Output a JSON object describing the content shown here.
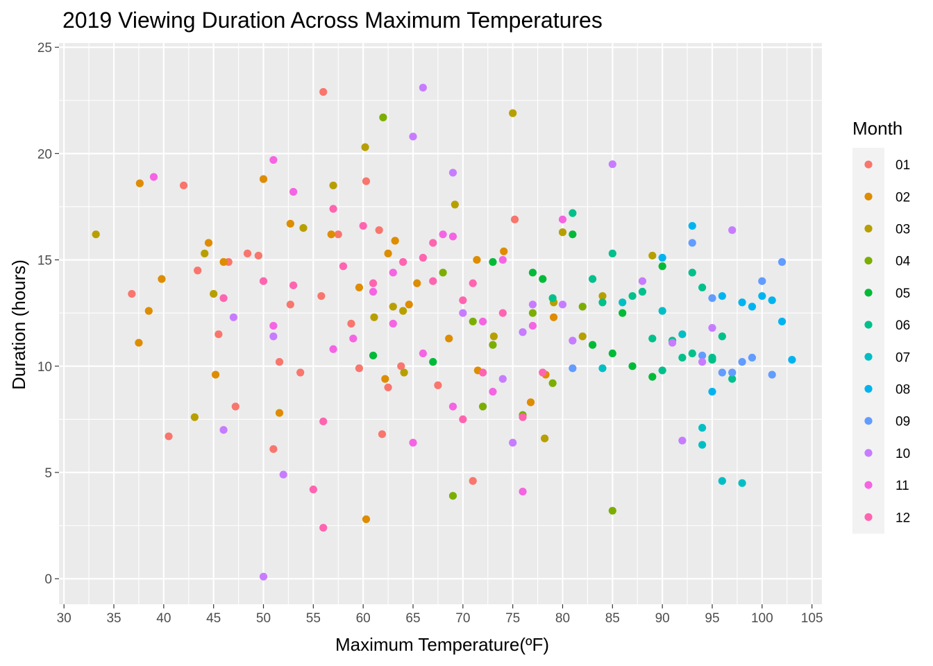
{
  "chart_data": {
    "type": "scatter",
    "title": "2019 Viewing Duration Across Maximum Temperatures",
    "xlabel": "Maximum Temperature(ºF)",
    "ylabel": "Duration (hours)",
    "xlim": [
      29.5,
      106
    ],
    "ylim": [
      -1.2,
      25.2
    ],
    "xticks": [
      30,
      35,
      40,
      45,
      50,
      55,
      60,
      65,
      70,
      75,
      80,
      85,
      90,
      95,
      100,
      105
    ],
    "yticks": [
      0,
      5,
      10,
      15,
      20,
      25
    ],
    "grid": true,
    "legend": {
      "title": "Month",
      "position": "right"
    },
    "series": [
      {
        "name": "01",
        "color": "#F8766D",
        "points": [
          [
            36.8,
            13.4
          ],
          [
            40.5,
            6.7
          ],
          [
            42,
            18.5
          ],
          [
            43.4,
            14.5
          ],
          [
            45.5,
            11.5
          ],
          [
            46.5,
            14.9
          ],
          [
            47.2,
            8.1
          ],
          [
            48.4,
            15.3
          ],
          [
            49.5,
            15.2
          ],
          [
            51,
            6.1
          ],
          [
            51.6,
            10.2
          ],
          [
            52.7,
            12.9
          ],
          [
            53.7,
            9.7
          ],
          [
            55.8,
            13.3
          ],
          [
            56,
            22.9
          ],
          [
            57.5,
            16.2
          ],
          [
            58.8,
            12.0
          ],
          [
            59.6,
            9.9
          ],
          [
            60.3,
            18.7
          ],
          [
            61.6,
            16.4
          ],
          [
            61.9,
            6.8
          ],
          [
            62.5,
            9.0
          ],
          [
            63.8,
            10.0
          ],
          [
            67.5,
            9.1
          ],
          [
            71,
            4.6
          ],
          [
            75.2,
            16.9
          ]
        ]
      },
      {
        "name": "02",
        "color": "#DE8C00",
        "points": [
          [
            37.5,
            11.1
          ],
          [
            37.6,
            18.6
          ],
          [
            38.5,
            12.6
          ],
          [
            39.8,
            14.1
          ],
          [
            44.5,
            15.8
          ],
          [
            45.2,
            9.6
          ],
          [
            46,
            14.9
          ],
          [
            50,
            18.8
          ],
          [
            51.6,
            7.8
          ],
          [
            52.7,
            16.7
          ],
          [
            56.8,
            16.2
          ],
          [
            59.6,
            13.7
          ],
          [
            60.3,
            2.8
          ],
          [
            62.2,
            9.4
          ],
          [
            62.5,
            15.3
          ],
          [
            63.2,
            15.9
          ],
          [
            64.6,
            12.9
          ],
          [
            65.4,
            13.9
          ],
          [
            68.6,
            11.3
          ],
          [
            71.4,
            15.0
          ],
          [
            71.5,
            9.8
          ],
          [
            74.1,
            15.4
          ],
          [
            76.8,
            8.3
          ],
          [
            78.3,
            9.6
          ],
          [
            79.1,
            12.3
          ]
        ]
      },
      {
        "name": "03",
        "color": "#B79F00",
        "points": [
          [
            33.2,
            16.2
          ],
          [
            43.1,
            7.6
          ],
          [
            44.1,
            15.3
          ],
          [
            45,
            13.4
          ],
          [
            54,
            16.5
          ],
          [
            57,
            18.5
          ],
          [
            60.2,
            20.3
          ],
          [
            61.1,
            12.3
          ],
          [
            63,
            12.8
          ],
          [
            64,
            12.6
          ],
          [
            64.1,
            9.7
          ],
          [
            69.2,
            17.6
          ],
          [
            73.1,
            11.4
          ],
          [
            75,
            21.9
          ],
          [
            78.2,
            6.6
          ],
          [
            79.1,
            13.0
          ],
          [
            80,
            16.3
          ],
          [
            82,
            11.4
          ],
          [
            84,
            13.3
          ],
          [
            89,
            15.2
          ]
        ]
      },
      {
        "name": "04",
        "color": "#7CAE00",
        "points": [
          [
            62,
            21.7
          ],
          [
            68,
            14.4
          ],
          [
            69,
            3.9
          ],
          [
            71,
            12.1
          ],
          [
            72,
            8.1
          ],
          [
            73,
            11.0
          ],
          [
            76,
            7.7
          ],
          [
            77,
            12.5
          ],
          [
            79,
            9.2
          ],
          [
            82,
            12.8
          ],
          [
            85,
            3.2
          ]
        ]
      },
      {
        "name": "05",
        "color": "#00BA38",
        "points": [
          [
            61,
            10.5
          ],
          [
            67,
            10.2
          ],
          [
            73,
            14.9
          ],
          [
            77,
            14.4
          ],
          [
            78,
            14.1
          ],
          [
            81,
            16.2
          ],
          [
            83,
            11.0
          ],
          [
            85,
            10.6
          ],
          [
            86,
            12.5
          ],
          [
            87,
            10.0
          ],
          [
            89,
            9.5
          ],
          [
            90,
            14.7
          ]
        ]
      },
      {
        "name": "06",
        "color": "#00C08B",
        "points": [
          [
            79,
            13.2
          ],
          [
            81,
            17.2
          ],
          [
            83,
            14.1
          ],
          [
            84,
            13.0
          ],
          [
            85,
            15.3
          ],
          [
            87,
            13.3
          ],
          [
            88,
            13.5
          ],
          [
            89,
            11.3
          ],
          [
            90,
            9.8
          ],
          [
            91,
            11.2
          ],
          [
            92,
            10.4
          ],
          [
            93,
            10.6
          ],
          [
            93,
            14.4
          ],
          [
            94,
            13.7
          ],
          [
            95,
            10.3
          ],
          [
            95,
            10.4
          ],
          [
            96,
            11.4
          ],
          [
            97,
            9.4
          ]
        ]
      },
      {
        "name": "07",
        "color": "#00BFC4",
        "points": [
          [
            84,
            9.9
          ],
          [
            86,
            13.0
          ],
          [
            90,
            12.6
          ],
          [
            92,
            11.5
          ],
          [
            94,
            7.1
          ],
          [
            94,
            6.3
          ],
          [
            96,
            4.6
          ],
          [
            98,
            4.5
          ]
        ]
      },
      {
        "name": "08",
        "color": "#00B4F0",
        "points": [
          [
            90,
            15.1
          ],
          [
            93,
            16.6
          ],
          [
            95,
            8.8
          ],
          [
            96,
            13.3
          ],
          [
            98,
            13.0
          ],
          [
            99,
            12.8
          ],
          [
            100,
            13.3
          ],
          [
            101,
            13.1
          ],
          [
            102,
            12.1
          ],
          [
            103,
            10.3
          ]
        ]
      },
      {
        "name": "09",
        "color": "#619CFF",
        "points": [
          [
            81,
            9.9
          ],
          [
            93,
            15.8
          ],
          [
            94,
            10.5
          ],
          [
            95,
            13.2
          ],
          [
            96,
            9.7
          ],
          [
            97,
            9.7
          ],
          [
            98,
            10.2
          ],
          [
            99,
            10.4
          ],
          [
            100,
            14.0
          ],
          [
            101,
            9.6
          ],
          [
            102,
            14.9
          ]
        ]
      },
      {
        "name": "10",
        "color": "#C77CFF",
        "points": [
          [
            46,
            7.0
          ],
          [
            47,
            12.3
          ],
          [
            51,
            11.4
          ],
          [
            52,
            4.9
          ],
          [
            50,
            0.1
          ],
          [
            65,
            20.8
          ],
          [
            66,
            23.1
          ],
          [
            69,
            19.1
          ],
          [
            70,
            12.5
          ],
          [
            74,
            9.4
          ],
          [
            75,
            6.4
          ],
          [
            76,
            11.6
          ],
          [
            77,
            12.9
          ],
          [
            80,
            12.9
          ],
          [
            81,
            11.2
          ],
          [
            85,
            19.5
          ],
          [
            88,
            14.0
          ],
          [
            91,
            11.1
          ],
          [
            92,
            6.5
          ],
          [
            94,
            10.2
          ],
          [
            95,
            11.8
          ],
          [
            97,
            16.4
          ]
        ]
      },
      {
        "name": "11",
        "color": "#F564E3",
        "points": [
          [
            39,
            18.9
          ],
          [
            51,
            11.9
          ],
          [
            51,
            19.7
          ],
          [
            53,
            18.2
          ],
          [
            57,
            10.8
          ],
          [
            59,
            11.3
          ],
          [
            61,
            13.5
          ],
          [
            63,
            14.4
          ],
          [
            63,
            12.0
          ],
          [
            65,
            6.4
          ],
          [
            66,
            10.6
          ],
          [
            68,
            16.2
          ],
          [
            69,
            16.1
          ],
          [
            69,
            8.1
          ],
          [
            72,
            12.1
          ],
          [
            73,
            8.8
          ],
          [
            74,
            15.0
          ],
          [
            76,
            4.1
          ],
          [
            77,
            11.9
          ],
          [
            80,
            16.9
          ]
        ]
      },
      {
        "name": "12",
        "color": "#FF64B0",
        "points": [
          [
            46,
            13.2
          ],
          [
            50,
            14.0
          ],
          [
            53,
            13.8
          ],
          [
            55,
            4.2
          ],
          [
            56,
            7.4
          ],
          [
            56,
            2.4
          ],
          [
            57,
            17.4
          ],
          [
            58,
            14.7
          ],
          [
            60,
            16.6
          ],
          [
            61,
            13.9
          ],
          [
            64,
            14.9
          ],
          [
            66,
            15.1
          ],
          [
            67,
            15.8
          ],
          [
            67,
            14.0
          ],
          [
            70,
            13.1
          ],
          [
            71,
            13.9
          ],
          [
            70,
            7.5
          ],
          [
            72,
            9.7
          ],
          [
            74,
            12.5
          ],
          [
            76,
            7.6
          ],
          [
            78,
            9.7
          ]
        ]
      }
    ]
  }
}
